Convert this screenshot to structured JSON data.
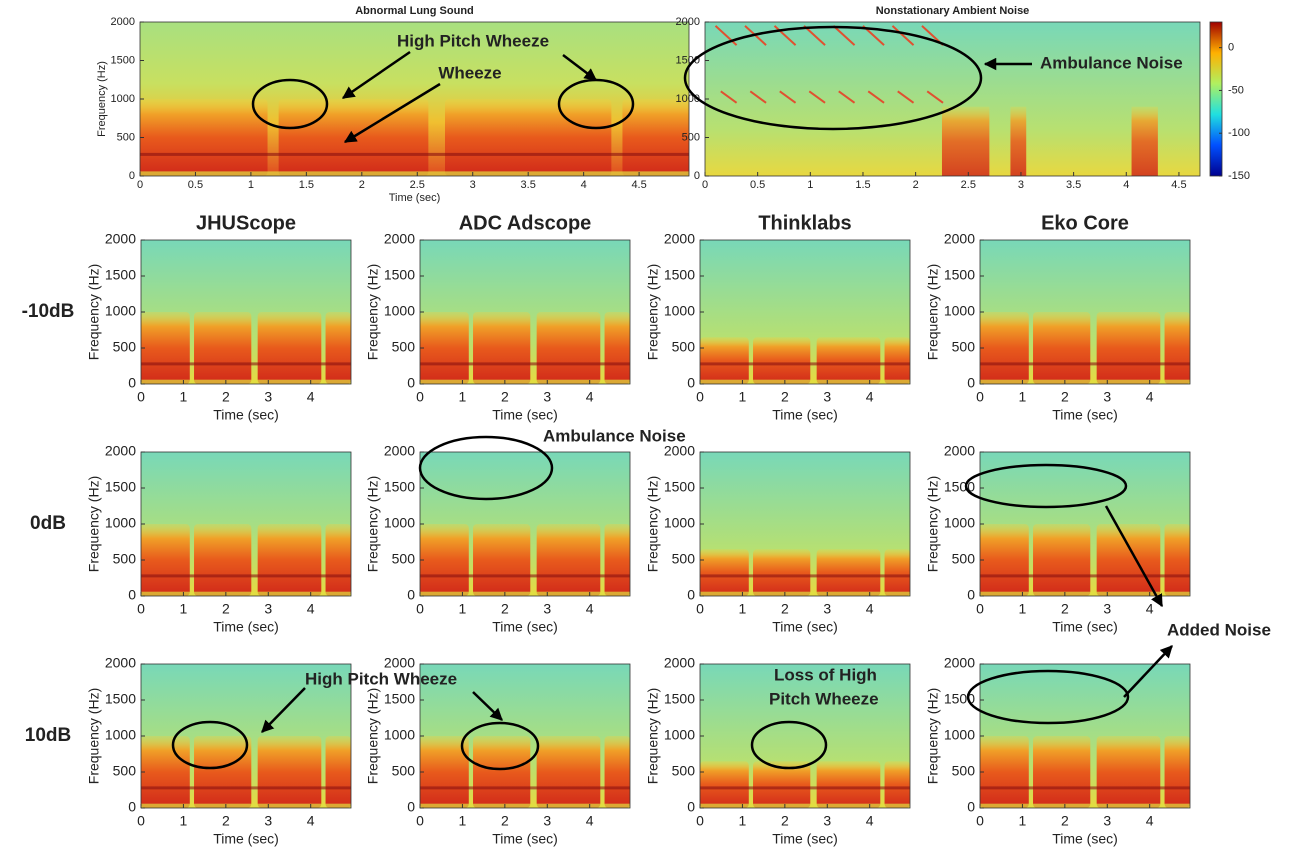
{
  "chart_data": [
    {
      "type": "spectrogram",
      "title": "Abnormal Lung Sound",
      "xlabel": "Time (sec)",
      "ylabel": "Frequency (Hz)",
      "xlim": [
        0,
        4.95
      ],
      "ylim": [
        0,
        2000
      ],
      "xticks": [
        0,
        0.5,
        1,
        1.5,
        2,
        2.5,
        3,
        3.5,
        4,
        4.5
      ],
      "yticks": [
        0,
        500,
        1000,
        1500,
        2000
      ],
      "annotations": [
        "High Pitch Wheeze",
        "Wheeze"
      ]
    },
    {
      "type": "spectrogram",
      "title": "Nonstationary Ambient Noise",
      "xlim": [
        0,
        4.7
      ],
      "ylim": [
        0,
        2000
      ],
      "xticks": [
        0,
        0.5,
        1,
        1.5,
        2,
        2.5,
        3,
        3.5,
        4,
        4.5
      ],
      "yticks": [
        0,
        500,
        1000,
        1500,
        2000
      ],
      "colorbar": {
        "lim": [
          -150,
          30
        ],
        "ticks": [
          0,
          -50,
          -100,
          -150
        ]
      },
      "annotations": [
        "Ambulance Noise"
      ]
    },
    {
      "type": "spectrogram",
      "title": "JHUScope",
      "xlabel": "Time  (sec)",
      "ylabel": "Frequency (Hz)",
      "xlim": [
        0,
        4.95
      ],
      "ylim": [
        0,
        2000
      ],
      "xticks": [
        0,
        1,
        2,
        3,
        4
      ],
      "yticks": [
        0,
        500,
        1000,
        1500,
        2000
      ]
    },
    {
      "type": "spectrogram",
      "title": "ADC Adscope",
      "xlabel": "Time  (sec)",
      "ylabel": "Frequency (Hz)",
      "xlim": [
        0,
        4.95
      ],
      "ylim": [
        0,
        2000
      ],
      "xticks": [
        0,
        1,
        2,
        3,
        4
      ],
      "yticks": [
        0,
        500,
        1000,
        1500,
        2000
      ]
    },
    {
      "type": "spectrogram",
      "title": "Thinklabs",
      "xlabel": "Time  (sec)",
      "ylabel": "Frequency (Hz)",
      "xlim": [
        0,
        4.95
      ],
      "ylim": [
        0,
        2000
      ],
      "xticks": [
        0,
        1,
        2,
        3,
        4
      ],
      "yticks": [
        0,
        500,
        1000,
        1500,
        2000
      ]
    },
    {
      "type": "spectrogram",
      "title": "Eko Core",
      "xlabel": "Time  (sec)",
      "ylabel": "Frequency (Hz)",
      "xlim": [
        0,
        4.95
      ],
      "ylim": [
        0,
        2000
      ],
      "xticks": [
        0,
        1,
        2,
        3,
        4
      ],
      "yticks": [
        0,
        500,
        1000,
        1500,
        2000
      ]
    },
    {
      "type": "spectrogram",
      "xlabel": "Time  (sec)",
      "ylabel": "Frequency (Hz)",
      "xlim": [
        0,
        4.95
      ],
      "ylim": [
        0,
        2000
      ],
      "xticks": [
        0,
        1,
        2,
        3,
        4
      ],
      "yticks": [
        0,
        500,
        1000,
        1500,
        2000
      ]
    },
    {
      "type": "spectrogram",
      "xlabel": "Time  (sec)",
      "ylabel": "Frequency (Hz)",
      "xlim": [
        0,
        4.95
      ],
      "ylim": [
        0,
        2000
      ],
      "xticks": [
        0,
        1,
        2,
        3,
        4
      ],
      "yticks": [
        0,
        500,
        1000,
        1500,
        2000
      ],
      "annotations": [
        "Ambulance Noise"
      ]
    },
    {
      "type": "spectrogram",
      "xlabel": "Time  (sec)",
      "ylabel": "Frequency (Hz)",
      "xlim": [
        0,
        4.95
      ],
      "ylim": [
        0,
        2000
      ],
      "xticks": [
        0,
        1,
        2,
        3,
        4
      ],
      "yticks": [
        0,
        500,
        1000,
        1500,
        2000
      ]
    },
    {
      "type": "spectrogram",
      "xlabel": "Time  (sec)",
      "ylabel": "Frequency (Hz)",
      "xlim": [
        0,
        4.95
      ],
      "ylim": [
        0,
        2000
      ],
      "xticks": [
        0,
        1,
        2,
        3,
        4
      ],
      "yticks": [
        0,
        500,
        1000,
        1500,
        2000
      ],
      "annotations": [
        "Added Noise"
      ]
    },
    {
      "type": "spectrogram",
      "xlabel": "Time  (sec)",
      "ylabel": "Frequency (Hz)",
      "xlim": [
        0,
        4.95
      ],
      "ylim": [
        0,
        2000
      ],
      "xticks": [
        0,
        1,
        2,
        3,
        4
      ],
      "yticks": [
        0,
        500,
        1000,
        1500,
        2000
      ],
      "annotations": [
        "High Pitch Wheeze"
      ]
    },
    {
      "type": "spectrogram",
      "xlabel": "Time  (sec)",
      "ylabel": "Frequency (Hz)",
      "xlim": [
        0,
        4.95
      ],
      "ylim": [
        0,
        2000
      ],
      "xticks": [
        0,
        1,
        2,
        3,
        4
      ],
      "yticks": [
        0,
        500,
        1000,
        1500,
        2000
      ]
    },
    {
      "type": "spectrogram",
      "xlabel": "Time  (sec)",
      "ylabel": "Frequency (Hz)",
      "xlim": [
        0,
        4.95
      ],
      "ylim": [
        0,
        2000
      ],
      "xticks": [
        0,
        1,
        2,
        3,
        4
      ],
      "yticks": [
        0,
        500,
        1000,
        1500,
        2000
      ],
      "annotations": [
        "Loss of High",
        "Pitch Wheeze"
      ]
    },
    {
      "type": "spectrogram",
      "xlabel": "Time  (sec)",
      "ylabel": "Frequency (Hz)",
      "xlim": [
        0,
        4.95
      ],
      "ylim": [
        0,
        2000
      ],
      "xticks": [
        0,
        1,
        2,
        3,
        4
      ],
      "yticks": [
        0,
        500,
        1000,
        1500,
        2000
      ]
    }
  ],
  "row_labels": [
    "-10dB",
    "0dB",
    "10dB"
  ]
}
